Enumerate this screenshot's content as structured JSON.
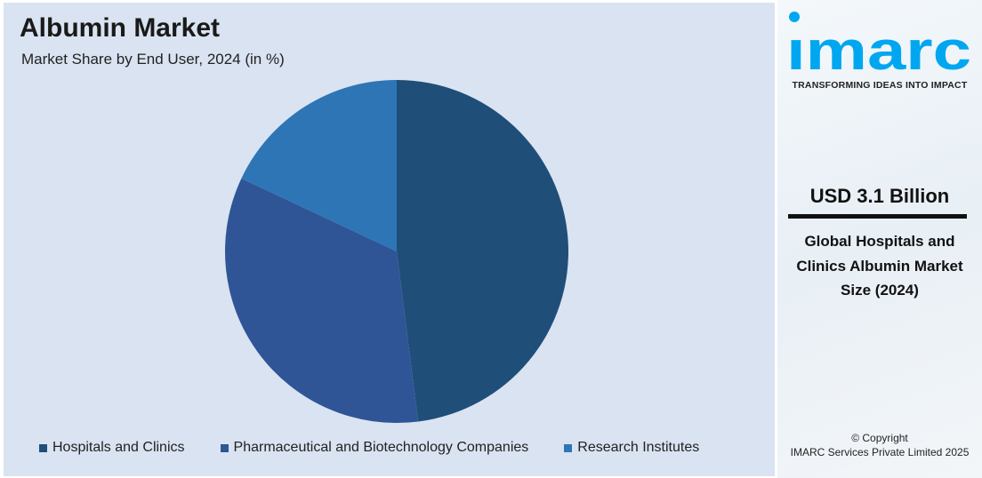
{
  "chart_data": {
    "type": "pie",
    "title": "Albumin Market",
    "subtitle": "Market Share by End User, 2024 (in %)",
    "categories": [
      "Hospitals and Clinics",
      "Pharmaceutical and Biotechnology Companies",
      "Research Institutes"
    ],
    "values": [
      48,
      34,
      18
    ],
    "colors": [
      "#1f4e79",
      "#2f5597",
      "#2e75b6"
    ],
    "legend_position": "bottom"
  },
  "brand": {
    "logo_text": "imarc",
    "tagline": "TRANSFORMING IDEAS INTO IMPACT",
    "color": "#00a7f0"
  },
  "side": {
    "value": "USD 3.1 Billion",
    "description": "Global Hospitals and Clinics Albumin Market Size (2024)",
    "copyright_line1": "© Copyright",
    "copyright_line2": "IMARC Services Private Limited 2025"
  }
}
